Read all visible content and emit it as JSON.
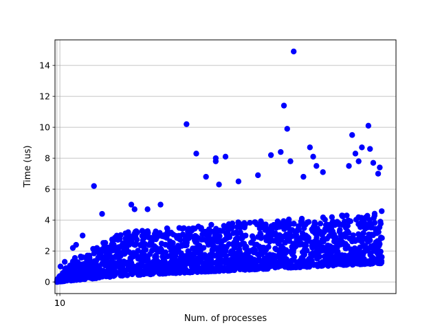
{
  "chart_data": {
    "type": "scatter",
    "title": "",
    "xlabel": "Num. of processes",
    "ylabel": "Time (us)",
    "xlim": [
      -5,
      1045
    ],
    "ylim": [
      -0.75,
      15.65
    ],
    "x_ticks": [
      1,
      10
    ],
    "x_tick_labels": [
      "1",
      "10"
    ],
    "y_ticks": [
      0,
      2,
      4,
      6,
      8,
      10,
      12,
      14
    ],
    "y_tick_labels": [
      "0",
      "2",
      "4",
      "6",
      "8",
      "10",
      "12",
      "14"
    ],
    "grid": {
      "x": true,
      "y": true
    },
    "legend": "none",
    "marker_color": "#0000ff",
    "series": [
      {
        "x_range": [
          1,
          1000
        ],
        "lower_envelope": [
          [
            1,
            0.0
          ],
          [
            200,
            0.4
          ],
          [
            500,
            0.7
          ],
          [
            800,
            1.0
          ],
          [
            1000,
            1.2
          ]
        ],
        "upper_envelope": [
          [
            1,
            0.2
          ],
          [
            50,
            1.5
          ],
          [
            200,
            3.2
          ],
          [
            500,
            3.8
          ],
          [
            800,
            4.2
          ],
          [
            1000,
            4.6
          ]
        ],
        "outliers": [
          [
            1,
            0.0
          ],
          [
            12,
            1.0
          ],
          [
            25,
            1.3
          ],
          [
            50,
            2.2
          ],
          [
            60,
            2.4
          ],
          [
            80,
            3.0
          ],
          [
            115,
            6.2
          ],
          [
            140,
            4.4
          ],
          [
            230,
            5.0
          ],
          [
            240,
            4.7
          ],
          [
            280,
            4.7
          ],
          [
            320,
            5.0
          ],
          [
            400,
            10.2
          ],
          [
            430,
            8.3
          ],
          [
            460,
            6.8
          ],
          [
            490,
            7.8
          ],
          [
            490,
            8.0
          ],
          [
            520,
            8.1
          ],
          [
            500,
            6.3
          ],
          [
            560,
            6.5
          ],
          [
            620,
            6.9
          ],
          [
            660,
            8.2
          ],
          [
            690,
            8.4
          ],
          [
            700,
            11.4
          ],
          [
            710,
            9.9
          ],
          [
            720,
            7.8
          ],
          [
            730,
            14.9
          ],
          [
            760,
            6.8
          ],
          [
            780,
            8.7
          ],
          [
            790,
            8.1
          ],
          [
            800,
            7.5
          ],
          [
            820,
            7.1
          ],
          [
            900,
            7.5
          ],
          [
            910,
            9.5
          ],
          [
            920,
            8.3
          ],
          [
            930,
            7.8
          ],
          [
            940,
            8.7
          ],
          [
            960,
            10.1
          ],
          [
            965,
            8.6
          ],
          [
            975,
            7.7
          ],
          [
            990,
            7.0
          ],
          [
            995,
            7.4
          ]
        ]
      }
    ]
  }
}
